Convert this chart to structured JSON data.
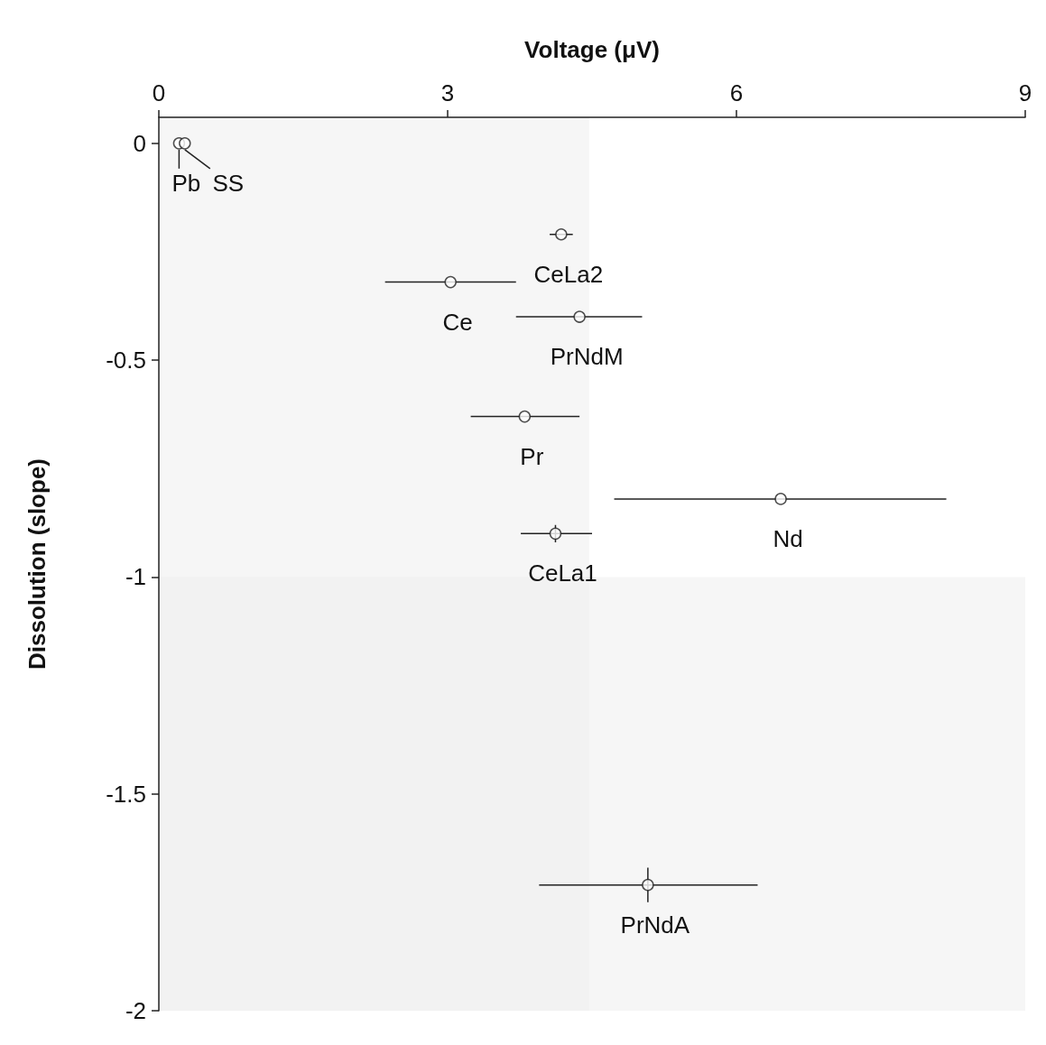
{
  "chart_data": {
    "type": "scatter",
    "xlabel": "Voltage (μV)",
    "ylabel": "Dissolution (slope)",
    "x": [
      0.21,
      0.27,
      4.18,
      3.03,
      4.37,
      3.8,
      6.46,
      4.12,
      5.08
    ],
    "series": [
      {
        "color": "#ffffff",
        "values": [
          0,
          0,
          -0.21,
          -0.32,
          -0.4,
          -0.63,
          -0.82,
          -0.9,
          -1.71
        ],
        "xerrors": [
          null,
          null,
          [
            4.06,
            4.3
          ],
          [
            2.35,
            3.71
          ],
          [
            3.71,
            5.02
          ],
          [
            3.24,
            4.37
          ],
          [
            4.73,
            8.18
          ],
          [
            3.76,
            4.5
          ],
          [
            3.95,
            6.22
          ]
        ],
        "errors": [
          null,
          null,
          null,
          null,
          null,
          null,
          null,
          0.02,
          0.04
        ]
      }
    ],
    "annotations": [
      {
        "text": "Pb",
        "x": 0.21,
        "y": 0
      },
      {
        "text": "SS",
        "x": 0.27,
        "y": 0
      },
      {
        "text": "CeLa2",
        "x": 4.18,
        "y": -0.21
      },
      {
        "text": "Ce",
        "x": 3.03,
        "y": -0.32
      },
      {
        "text": "PrNdM",
        "x": 4.37,
        "y": -0.4
      },
      {
        "text": "Pr",
        "x": 3.8,
        "y": -0.63
      },
      {
        "text": "Nd",
        "x": 6.46,
        "y": -0.82
      },
      {
        "text": "CeLa1",
        "x": 4.12,
        "y": -0.9
      },
      {
        "text": "PrNdA",
        "x": 5.08,
        "y": -1.71
      }
    ],
    "bands": [
      {
        "axis": "x",
        "from": 0,
        "to": 4.47,
        "color": "#eeeeee"
      },
      {
        "axis": "y",
        "from": -2,
        "to": -1,
        "color": "#eeeeee"
      }
    ],
    "xlim": [
      0,
      9
    ],
    "xticks": [
      0,
      3,
      6,
      9
    ],
    "ylim": [
      -2,
      0.06
    ],
    "yticks": [
      0,
      -0.5,
      -1,
      -1.5,
      -2
    ],
    "marker": "circle"
  }
}
